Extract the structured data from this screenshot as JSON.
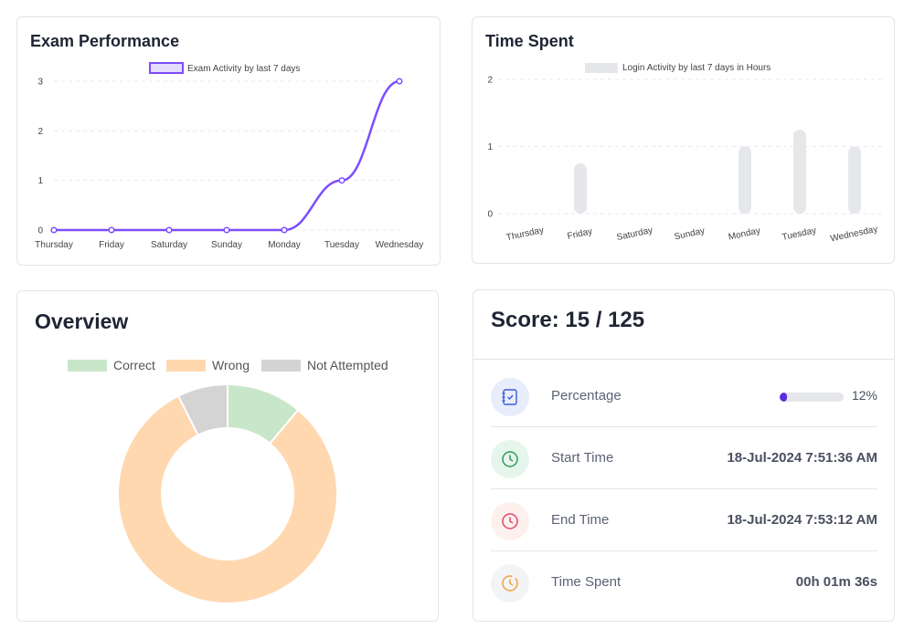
{
  "exam_performance": {
    "title": "Exam Performance",
    "chart_data": {
      "type": "line",
      "categories": [
        "Thursday",
        "Friday",
        "Saturday",
        "Sunday",
        "Monday",
        "Tuesday",
        "Wednesday"
      ],
      "series": [
        {
          "name": "Exam Activity by last 7 days",
          "values": [
            0,
            0,
            0,
            0,
            0,
            1,
            3
          ],
          "color": "#7c4dff"
        }
      ],
      "yticks": [
        0,
        1,
        2,
        3
      ],
      "ylim": [
        0,
        3
      ],
      "legend": "top"
    }
  },
  "time_spent": {
    "title": "Time Spent",
    "chart_data": {
      "type": "bar",
      "categories": [
        "Thursday",
        "Friday",
        "Saturday",
        "Sunday",
        "Monday",
        "Tuesday",
        "Wednesday"
      ],
      "series": [
        {
          "name": "Login Activity by last 7 days in Hours",
          "values": [
            0,
            0.75,
            0,
            0,
            1.0,
            1.25,
            1.0
          ],
          "color": "#e5e7eb"
        }
      ],
      "yticks": [
        0,
        1,
        2
      ],
      "ylim": [
        0,
        2
      ],
      "legend": "top"
    }
  },
  "overview": {
    "title": "Overview",
    "chart_data": {
      "type": "pie",
      "categories": [
        "Correct",
        "Wrong",
        "Not Attempted"
      ],
      "values": [
        3,
        22,
        2
      ],
      "colors": [
        "#c8e6c9",
        "#ffd8b0",
        "#d4d4d4"
      ],
      "legend": "top"
    }
  },
  "score": {
    "title": "Score: 15 / 125",
    "rows": [
      {
        "label": "Percentage",
        "value": "12%",
        "progress": 0.12,
        "icon": "checklist-icon"
      },
      {
        "label": "Start Time",
        "value": "18-Jul-2024 7:51:36 AM",
        "icon": "clock-icon"
      },
      {
        "label": "End Time",
        "value": "18-Jul-2024 7:53:12 AM",
        "icon": "clock-icon"
      },
      {
        "label": "Time Spent",
        "value": "00h 01m 36s",
        "icon": "timer-icon"
      }
    ]
  }
}
